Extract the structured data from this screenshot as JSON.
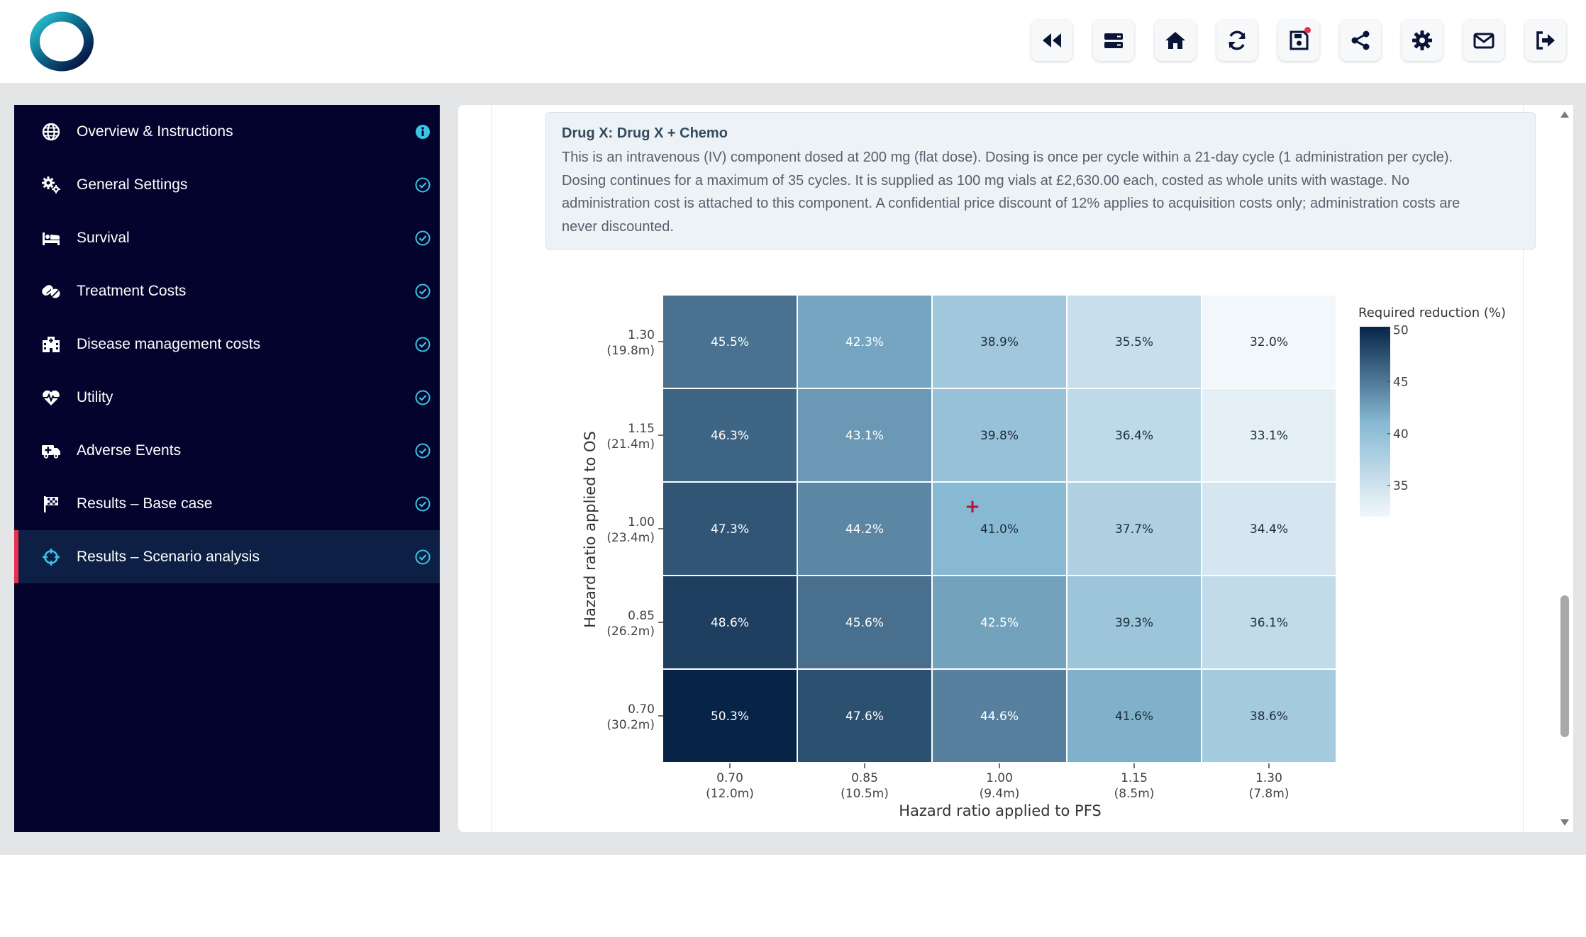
{
  "toolbar": {
    "buttons": [
      {
        "name": "rewind-button",
        "icon": "backward-icon"
      },
      {
        "name": "storage-button",
        "icon": "server-icon"
      },
      {
        "name": "home-button",
        "icon": "home-icon"
      },
      {
        "name": "refresh-button",
        "icon": "refresh-icon"
      },
      {
        "name": "save-button",
        "icon": "save-icon"
      },
      {
        "name": "share-button",
        "icon": "share-icon"
      },
      {
        "name": "settings-button",
        "icon": "gear-icon"
      },
      {
        "name": "mail-button",
        "icon": "mail-icon"
      },
      {
        "name": "logout-button",
        "icon": "logout-icon"
      }
    ]
  },
  "sidebar": {
    "items": [
      {
        "label": "Overview & Instructions",
        "icon": "globe-icon",
        "status": "info"
      },
      {
        "label": "General Settings",
        "icon": "gears-icon",
        "status": "done"
      },
      {
        "label": "Survival",
        "icon": "bed-icon",
        "status": "done"
      },
      {
        "label": "Treatment Costs",
        "icon": "pills-icon",
        "status": "done"
      },
      {
        "label": "Disease management costs",
        "icon": "hospital-icon",
        "status": "done"
      },
      {
        "label": "Utility",
        "icon": "heartbeat-icon",
        "status": "done"
      },
      {
        "label": "Adverse Events",
        "icon": "ambulance-icon",
        "status": "done"
      },
      {
        "label": "Results – Base case",
        "icon": "flag-icon",
        "status": "done"
      },
      {
        "label": "Results – Scenario analysis",
        "icon": "crosshairs-icon",
        "status": "done",
        "active": true
      }
    ]
  },
  "description": {
    "title": "Drug X: Drug X + Chemo",
    "lines": [
      "This is an intravenous (IV) component dosed at 200 mg (flat dose). Dosing is once per cycle within a 21-day cycle (1 administration per cycle).",
      "Dosing continues for a maximum of 35 cycles. It is supplied as 100 mg vials at £2,630.00 each, costed as whole units with wastage. No",
      "administration cost is attached to this component. A confidential price discount of 12% applies to acquisition costs only; administration costs are",
      "never discounted."
    ]
  },
  "chart_data": {
    "type": "heatmap",
    "xlabel": "Hazard ratio applied to PFS",
    "ylabel": "Hazard ratio applied to OS",
    "x_ticks": [
      {
        "value": "0.70",
        "sub": "(12.0m)"
      },
      {
        "value": "0.85",
        "sub": "(10.5m)"
      },
      {
        "value": "1.00",
        "sub": "(9.4m)"
      },
      {
        "value": "1.15",
        "sub": "(8.5m)"
      },
      {
        "value": "1.30",
        "sub": "(7.8m)"
      }
    ],
    "y_ticks": [
      {
        "value": "1.30",
        "sub": "(19.8m)"
      },
      {
        "value": "1.15",
        "sub": "(21.4m)"
      },
      {
        "value": "1.00",
        "sub": "(23.4m)"
      },
      {
        "value": "0.85",
        "sub": "(26.2m)"
      },
      {
        "value": "0.70",
        "sub": "(30.2m)"
      }
    ],
    "values": [
      [
        45.5,
        42.3,
        38.9,
        35.5,
        32.0
      ],
      [
        46.3,
        43.1,
        39.8,
        36.4,
        33.1
      ],
      [
        47.3,
        44.2,
        41.0,
        37.7,
        34.4
      ],
      [
        48.6,
        45.6,
        42.5,
        39.3,
        36.1
      ],
      [
        50.3,
        47.6,
        44.6,
        41.6,
        38.6
      ]
    ],
    "base_case": {
      "row": 2,
      "col": 2,
      "marker": "+",
      "color": "#b0173a"
    },
    "colorbar": {
      "title": "Required reduction (%)",
      "ticks": [
        50,
        45,
        40,
        35
      ],
      "range": [
        32.0,
        50.3
      ],
      "low_color": "#f1f7fb",
      "mid_color": "#86b8d2",
      "high_color": "#072447"
    }
  }
}
